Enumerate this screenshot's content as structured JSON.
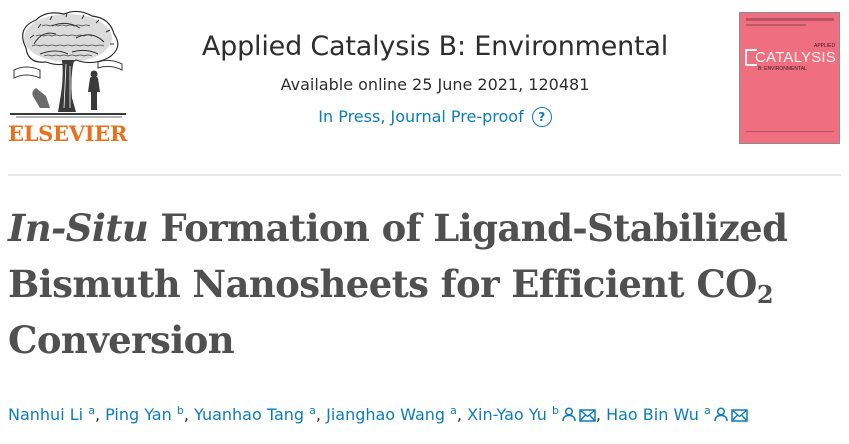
{
  "header": {
    "publisher_name": "ELSEVIER",
    "journal_title": "Applied Catalysis B: Environmental",
    "availability": "Available online 25 June 2021, 120481",
    "status": "In Press, Journal Pre-proof",
    "cover": {
      "line1": "APPLIED",
      "line2": "CATALYSIS",
      "line3": "B: ENVIRONMENTAL"
    }
  },
  "article": {
    "title_italic": "In-Situ",
    "title_main": " Formation of Ligand-Stabilized Bismuth Nanosheets for Efficient CO",
    "title_sub": "2",
    "title_end": " Conversion"
  },
  "authors": [
    {
      "name": "Nanhui Li",
      "sup": "a"
    },
    {
      "name": "Ping Yan",
      "sup": "b"
    },
    {
      "name": "Yuanhao Tang",
      "sup": "a"
    },
    {
      "name": "Jianghao Wang",
      "sup": "a"
    },
    {
      "name": "Xin-Yao Yu",
      "sup": "b"
    },
    {
      "name": "Hao Bin Wu",
      "sup": "a"
    }
  ],
  "separator": ", ",
  "colors": {
    "link": "#0c7dbb",
    "elsevier_orange": "#e9711c",
    "cover_pink": "#ef6f80"
  },
  "icons": {
    "help": "question-circle-icon",
    "author": "person-icon",
    "email": "envelope-icon"
  }
}
